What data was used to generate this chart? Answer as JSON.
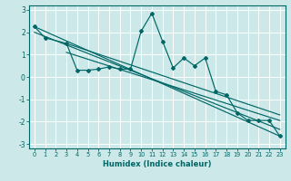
{
  "xlabel": "Humidex (Indice chaleur)",
  "xlim": [
    -0.5,
    23.5
  ],
  "ylim": [
    -3.2,
    3.2
  ],
  "yticks": [
    -3,
    -2,
    -1,
    0,
    1,
    2,
    3
  ],
  "xticks": [
    0,
    1,
    2,
    3,
    4,
    5,
    6,
    7,
    8,
    9,
    10,
    11,
    12,
    13,
    14,
    15,
    16,
    17,
    18,
    19,
    20,
    21,
    22,
    23
  ],
  "bg_color": "#cce8e8",
  "grid_color": "#ffffff",
  "line_color": "#006666",
  "main_x": [
    0,
    1,
    3,
    4,
    5,
    6,
    7,
    8,
    9,
    10,
    11,
    12,
    13,
    14,
    15,
    16,
    17,
    18,
    19,
    20,
    21,
    22,
    23
  ],
  "main_y": [
    2.25,
    1.75,
    1.5,
    0.3,
    0.3,
    0.35,
    0.45,
    0.35,
    0.35,
    2.05,
    2.85,
    1.6,
    0.4,
    0.85,
    0.5,
    0.85,
    -0.65,
    -0.8,
    -1.6,
    -1.95,
    -1.95,
    -1.95,
    -2.65
  ],
  "trend_lines": [
    {
      "x": [
        0,
        23
      ],
      "y": [
        2.25,
        -2.65
      ]
    },
    {
      "x": [
        0,
        23
      ],
      "y": [
        2.0,
        -2.35
      ]
    },
    {
      "x": [
        3,
        23
      ],
      "y": [
        1.5,
        -1.7
      ]
    },
    {
      "x": [
        3,
        23
      ],
      "y": [
        1.1,
        -1.95
      ]
    }
  ]
}
